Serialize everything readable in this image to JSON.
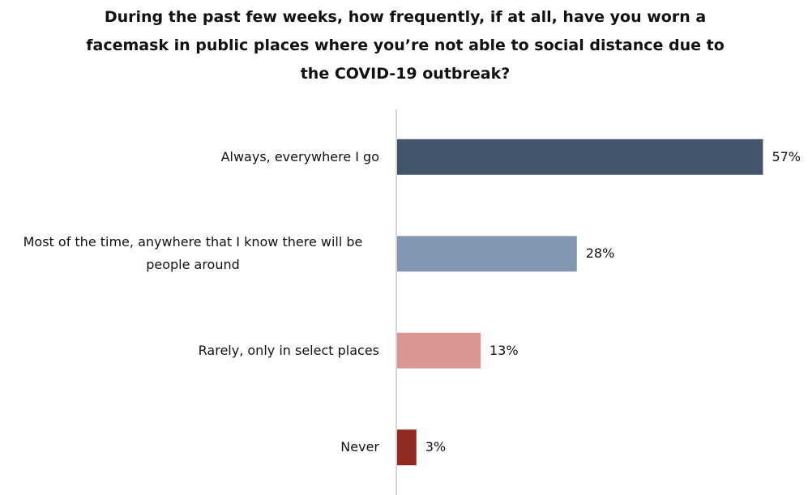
{
  "chart_data": {
    "type": "bar",
    "orientation": "horizontal",
    "title": "During the past few weeks, how frequently, if at all, have you worn a facemask in public places where you’re not able to social distance due to the COVID-19 outbreak?",
    "categories": [
      "Always, everywhere I go",
      "Most of the time, anywhere that I know there will be people around",
      "Rarely, only in select places",
      "Never"
    ],
    "values": [
      57,
      28,
      13,
      3
    ],
    "value_labels": [
      "57%",
      "28%",
      "13%",
      "3%"
    ],
    "colors": [
      "#44546a",
      "#8497b0",
      "#d99694",
      "#922b21"
    ]
  }
}
